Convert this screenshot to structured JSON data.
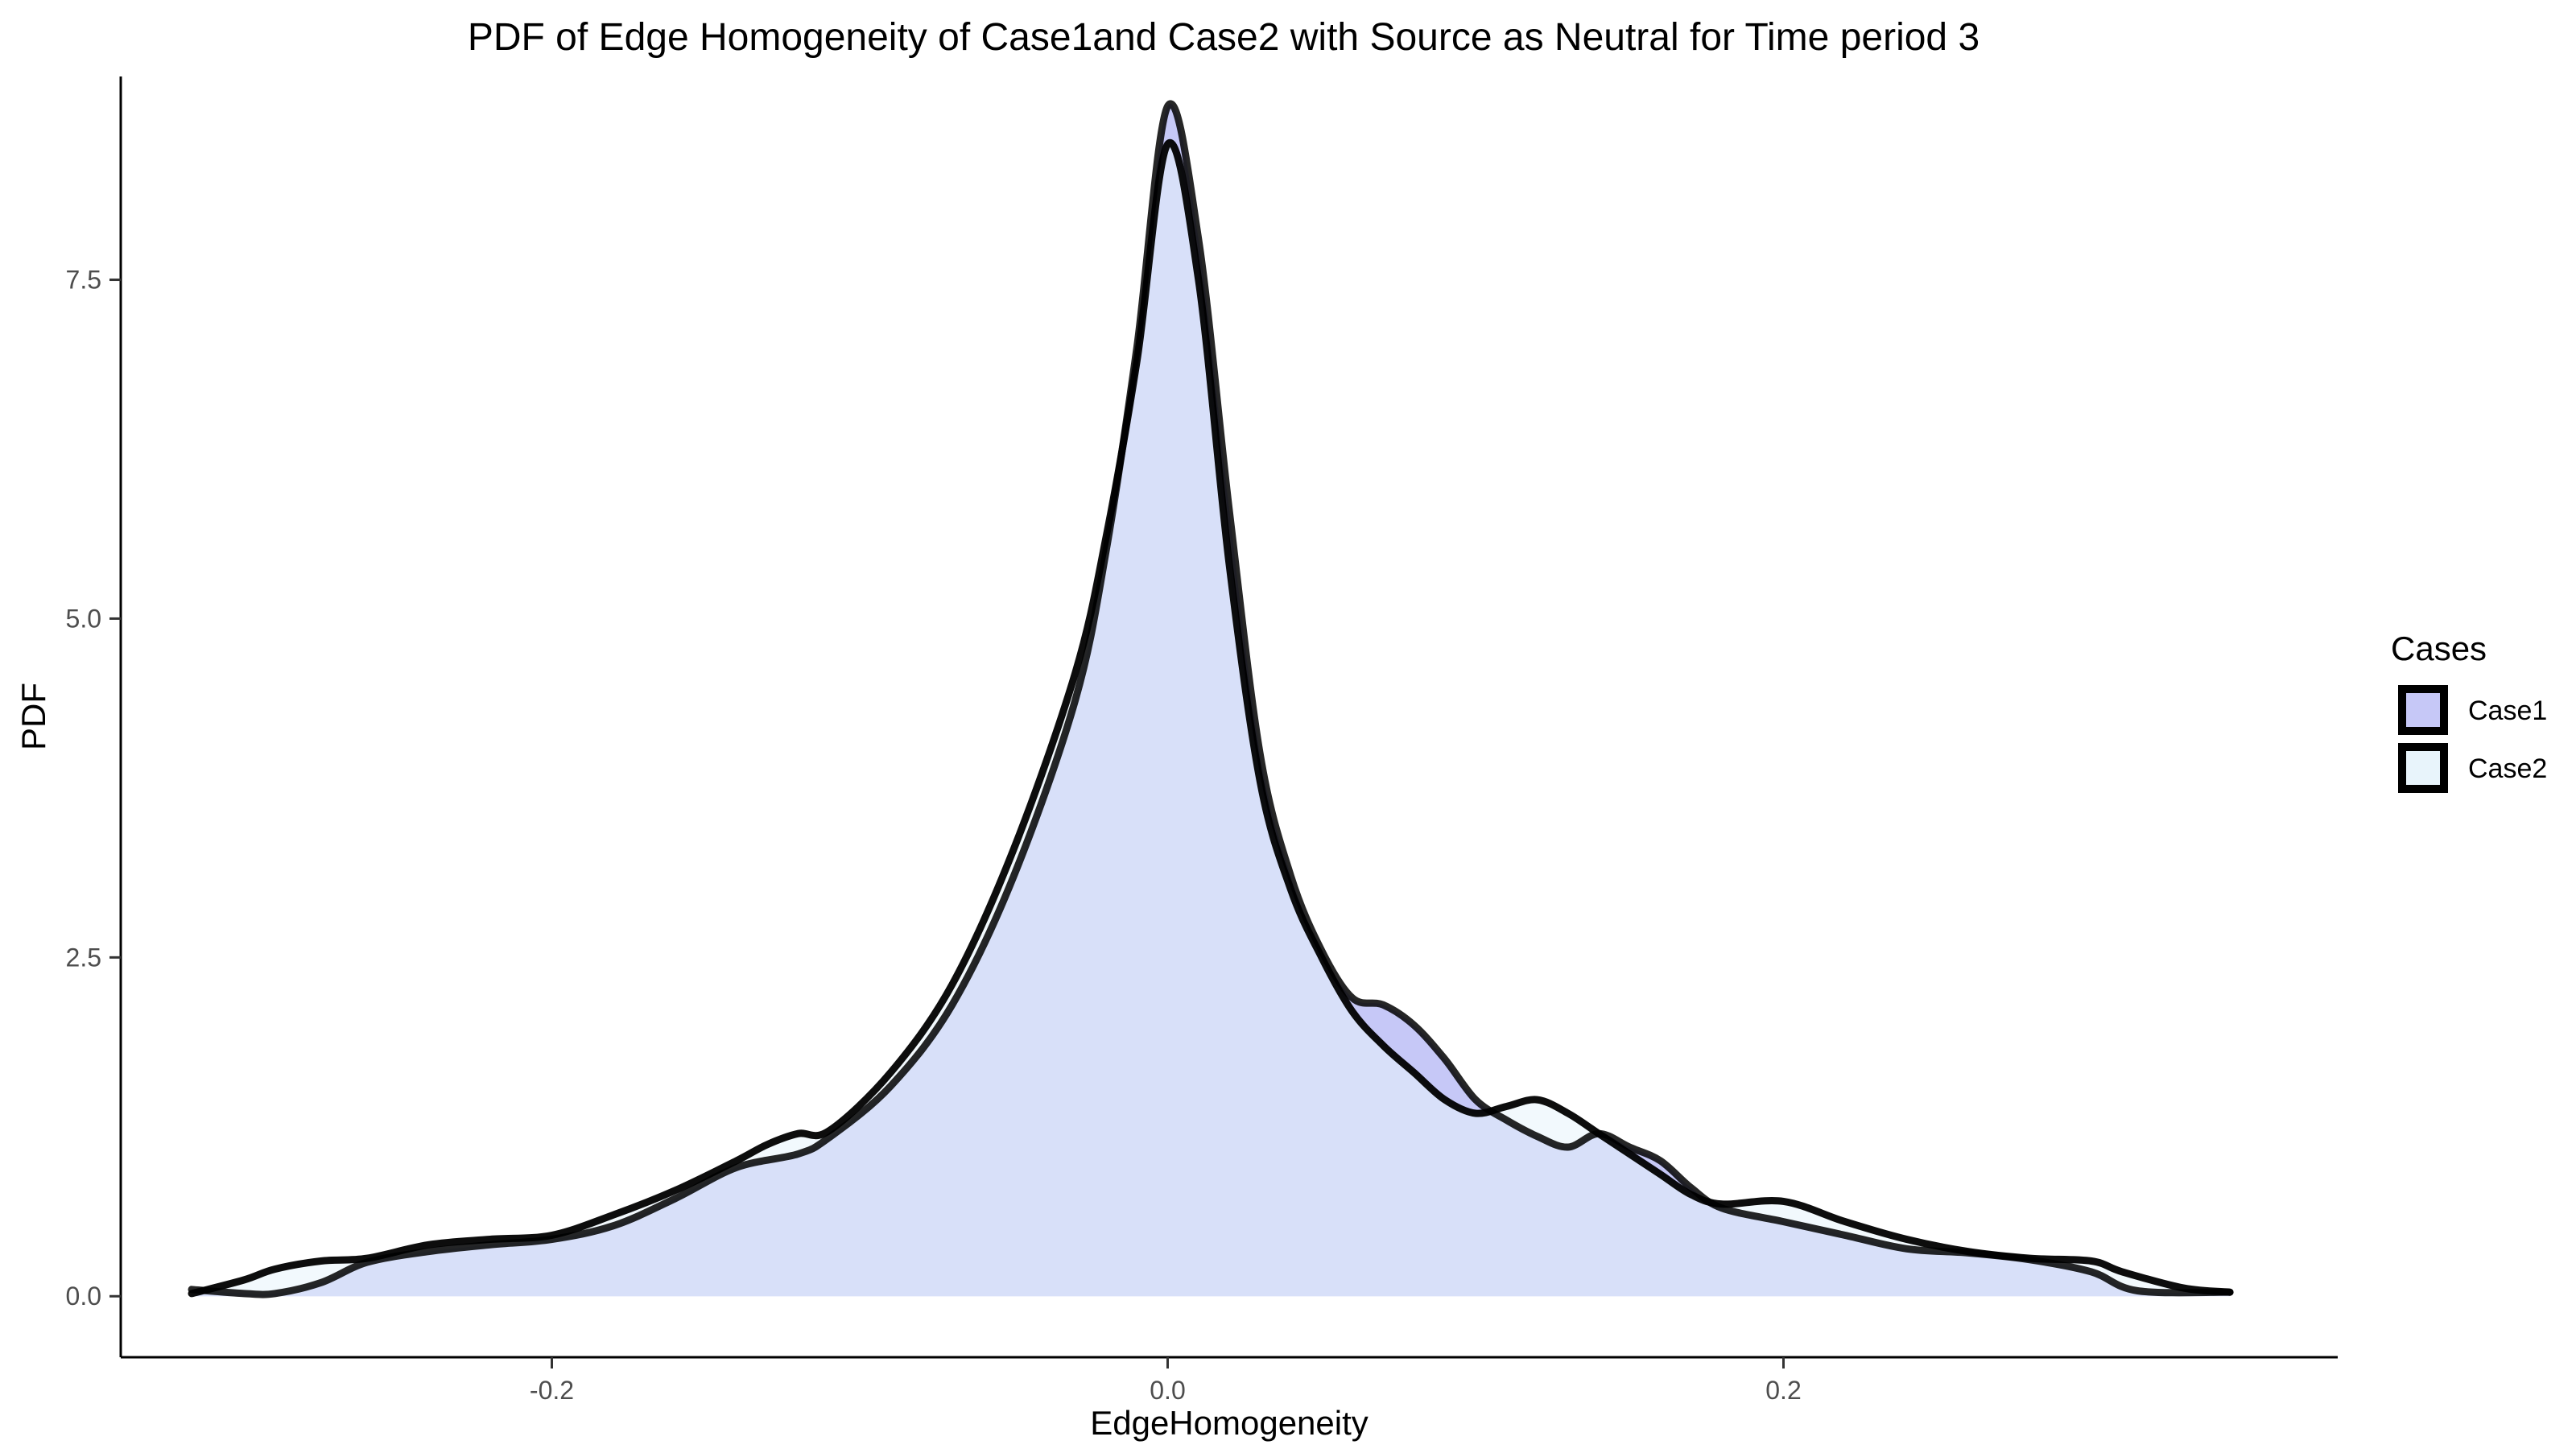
{
  "chart_data": {
    "type": "area",
    "title": "PDF of Edge Homogeneity of Case1and Case2 with Source as Neutral for Time period 3",
    "xlabel": "EdgeHomogeneity",
    "ylabel": "PDF",
    "xlim": [
      -0.34,
      0.38
    ],
    "ylim": [
      -0.45,
      9.0
    ],
    "x_ticks": [
      -0.2,
      0.0,
      0.2
    ],
    "x_tick_labels": [
      "-0.2",
      "0.0",
      "0.2"
    ],
    "y_ticks": [
      0.0,
      2.5,
      5.0,
      7.5
    ],
    "y_tick_labels": [
      "0.0",
      "2.5",
      "5.0",
      "7.5"
    ],
    "grid": false,
    "legend": {
      "title": "Cases",
      "position": "right"
    },
    "series": [
      {
        "name": "Case1",
        "fill": "#c6c8f7",
        "stroke": "#000000",
        "points": [
          [
            -0.317,
            0.05
          ],
          [
            -0.3,
            0.02
          ],
          [
            -0.29,
            0.02
          ],
          [
            -0.275,
            0.1
          ],
          [
            -0.26,
            0.25
          ],
          [
            -0.24,
            0.33
          ],
          [
            -0.22,
            0.38
          ],
          [
            -0.2,
            0.42
          ],
          [
            -0.18,
            0.52
          ],
          [
            -0.16,
            0.72
          ],
          [
            -0.14,
            0.95
          ],
          [
            -0.12,
            1.05
          ],
          [
            -0.11,
            1.17
          ],
          [
            -0.09,
            1.55
          ],
          [
            -0.07,
            2.15
          ],
          [
            -0.05,
            3.1
          ],
          [
            -0.03,
            4.4
          ],
          [
            -0.02,
            5.5
          ],
          [
            -0.01,
            7.0
          ],
          [
            0.0,
            8.78
          ],
          [
            0.01,
            7.8
          ],
          [
            0.02,
            5.8
          ],
          [
            0.03,
            4.0
          ],
          [
            0.04,
            3.1
          ],
          [
            0.05,
            2.55
          ],
          [
            0.06,
            2.2
          ],
          [
            0.07,
            2.15
          ],
          [
            0.08,
            2.0
          ],
          [
            0.09,
            1.75
          ],
          [
            0.1,
            1.45
          ],
          [
            0.11,
            1.3
          ],
          [
            0.12,
            1.18
          ],
          [
            0.13,
            1.1
          ],
          [
            0.14,
            1.2
          ],
          [
            0.15,
            1.1
          ],
          [
            0.16,
            1.0
          ],
          [
            0.17,
            0.8
          ],
          [
            0.18,
            0.65
          ],
          [
            0.2,
            0.55
          ],
          [
            0.22,
            0.45
          ],
          [
            0.24,
            0.35
          ],
          [
            0.26,
            0.32
          ],
          [
            0.28,
            0.27
          ],
          [
            0.3,
            0.18
          ],
          [
            0.315,
            0.04
          ],
          [
            0.345,
            0.03
          ]
        ]
      },
      {
        "name": "Case2",
        "fill": "#e8f4fb",
        "stroke": "#000000",
        "points": [
          [
            -0.317,
            0.02
          ],
          [
            -0.3,
            0.12
          ],
          [
            -0.29,
            0.2
          ],
          [
            -0.275,
            0.26
          ],
          [
            -0.26,
            0.28
          ],
          [
            -0.24,
            0.38
          ],
          [
            -0.22,
            0.42
          ],
          [
            -0.2,
            0.45
          ],
          [
            -0.18,
            0.6
          ],
          [
            -0.16,
            0.78
          ],
          [
            -0.14,
            1.0
          ],
          [
            -0.13,
            1.12
          ],
          [
            -0.12,
            1.2
          ],
          [
            -0.11,
            1.22
          ],
          [
            -0.09,
            1.65
          ],
          [
            -0.07,
            2.3
          ],
          [
            -0.05,
            3.3
          ],
          [
            -0.03,
            4.6
          ],
          [
            -0.02,
            5.6
          ],
          [
            -0.01,
            6.9
          ],
          [
            0.0,
            8.5
          ],
          [
            0.01,
            7.5
          ],
          [
            0.02,
            5.4
          ],
          [
            0.03,
            3.8
          ],
          [
            0.04,
            3.0
          ],
          [
            0.05,
            2.5
          ],
          [
            0.06,
            2.1
          ],
          [
            0.07,
            1.85
          ],
          [
            0.08,
            1.65
          ],
          [
            0.09,
            1.45
          ],
          [
            0.1,
            1.35
          ],
          [
            0.11,
            1.4
          ],
          [
            0.12,
            1.45
          ],
          [
            0.13,
            1.35
          ],
          [
            0.14,
            1.2
          ],
          [
            0.15,
            1.05
          ],
          [
            0.16,
            0.9
          ],
          [
            0.17,
            0.75
          ],
          [
            0.18,
            0.68
          ],
          [
            0.2,
            0.7
          ],
          [
            0.22,
            0.55
          ],
          [
            0.24,
            0.42
          ],
          [
            0.26,
            0.33
          ],
          [
            0.28,
            0.28
          ],
          [
            0.3,
            0.26
          ],
          [
            0.31,
            0.18
          ],
          [
            0.33,
            0.06
          ],
          [
            0.345,
            0.03
          ]
        ]
      }
    ]
  }
}
